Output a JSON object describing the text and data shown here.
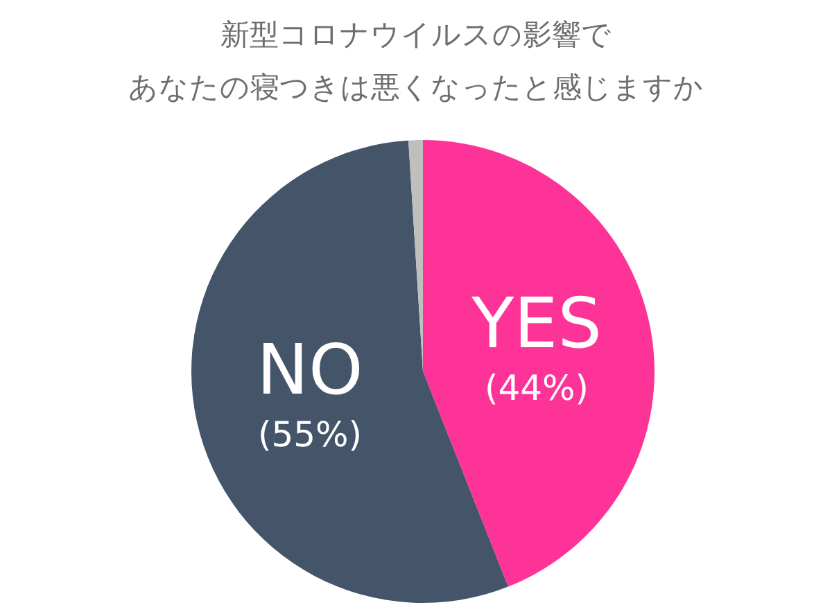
{
  "chart_data": {
    "type": "pie",
    "title": "新型コロナウイルスの影響で",
    "subtitle": "あなたの寝つきは悪くなったと感じますか",
    "categories": [
      "YES",
      "NO",
      null
    ],
    "values": [
      44,
      55,
      1
    ],
    "colors": [
      "#fe3398",
      "#445469",
      "#bfbfbf"
    ],
    "value_labels": [
      "(44%)",
      "(55%)",
      null
    ]
  }
}
